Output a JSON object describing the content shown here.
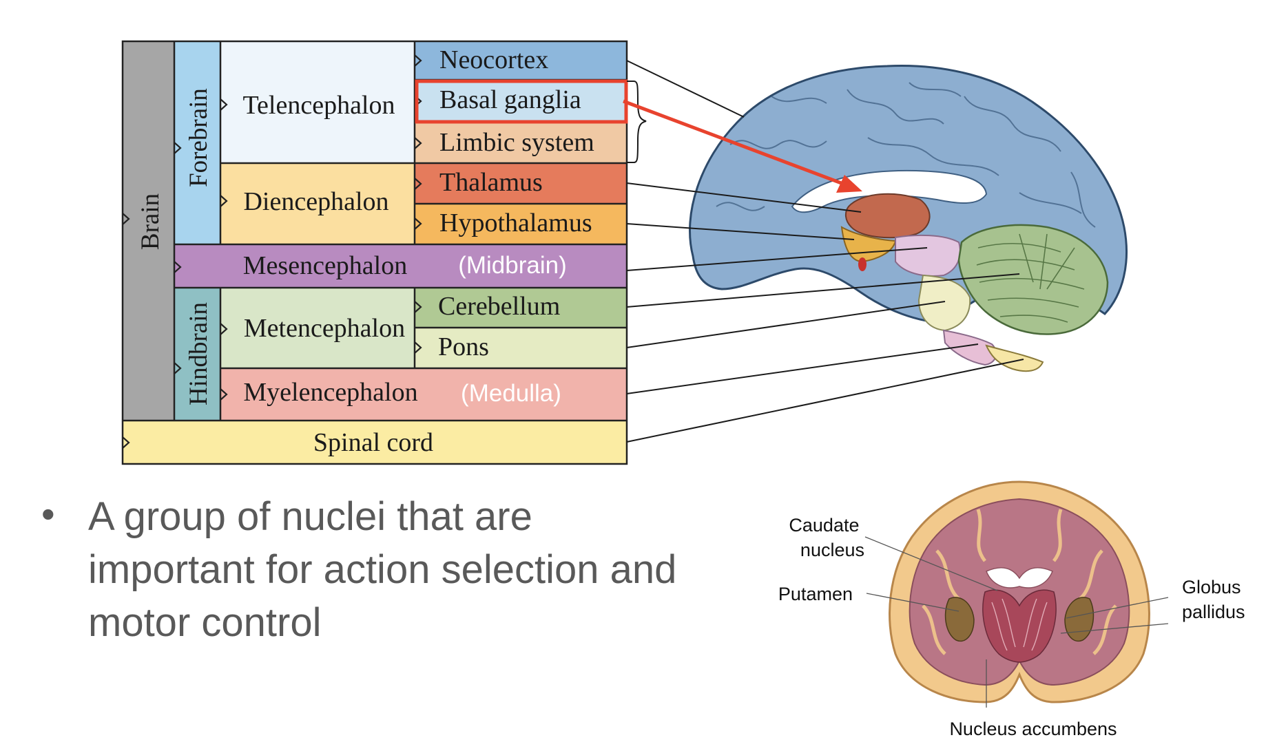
{
  "hierarchy": {
    "brain": "Brain",
    "forebrain": "Forebrain",
    "hindbrain": "Hindbrain",
    "telencephalon": "Telencephalon",
    "diencephalon": "Diencephalon",
    "mesencephalon": "Mesencephalon",
    "midbrain_note": "(Midbrain)",
    "metencephalon": "Metencephalon",
    "myelencephalon": "Myelencephalon",
    "medulla_note": "(Medulla)",
    "spinal_cord": "Spinal cord",
    "neocortex": "Neocortex",
    "basal_ganglia": "Basal ganglia",
    "limbic_system": "Limbic system",
    "thalamus": "Thalamus",
    "hypothalamus": "Hypothalamus",
    "cerebellum": "Cerebellum",
    "pons": "Pons"
  },
  "colors": {
    "brain": "#a6a6a6",
    "forebrain": "#a8d4ee",
    "hindbrain": "#8fc0c4",
    "telencephalon": "#eef5fb",
    "neocortex": "#8db7dc",
    "basal_ganglia": "#c9e1f0",
    "limbic_system": "#f0c9a4",
    "diencephalon": "#fbdfa0",
    "thalamus": "#e57b5c",
    "hypothalamus": "#f5b85e",
    "mesencephalon": "#b88bc0",
    "metencephalon": "#d9e6c8",
    "cerebellum": "#b0c994",
    "pons": "#e5ebc3",
    "myelencephalon": "#f1b3ab",
    "spinal_cord": "#fbeca3",
    "highlight": "#e8432e"
  },
  "bullet": {
    "text": "A group of nuclei that are important for action selection and motor control"
  },
  "coronal_labels": {
    "caudate": "Caudate nucleus",
    "putamen": "Putamen",
    "globus_pallidus": "Globus pallidus",
    "nucleus_accumbens": "Nucleus accumbens"
  }
}
